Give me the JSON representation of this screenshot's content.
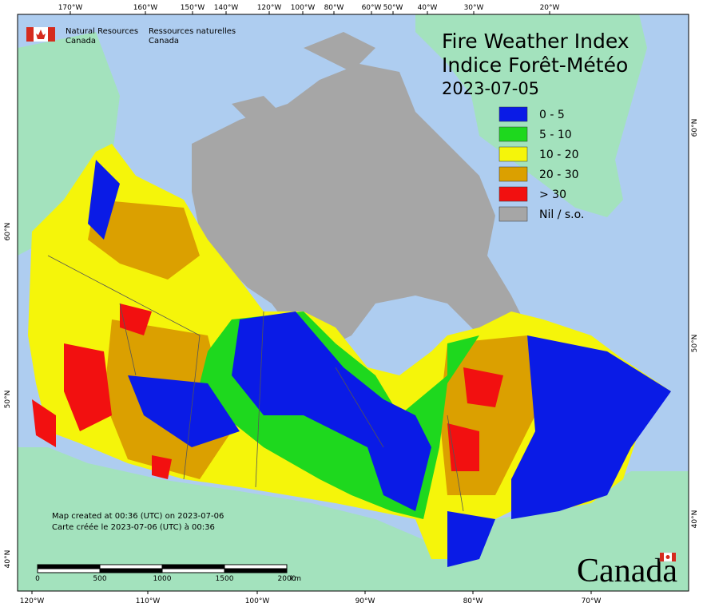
{
  "header": {
    "org_en": [
      "Natural Resources",
      "Canada"
    ],
    "org_fr": [
      "Ressources naturelles",
      "Canada"
    ],
    "title_en": "Fire Weather Index",
    "title_fr": "Indice Forêt-Météo",
    "date": "2023-07-05"
  },
  "legend": [
    {
      "label": "0 - 5",
      "color": "#0a1be6"
    },
    {
      "label": "5 - 10",
      "color": "#1ed81e"
    },
    {
      "label": "10 - 20",
      "color": "#f5f50a"
    },
    {
      "label": "20 - 30",
      "color": "#dba000"
    },
    {
      "label": "> 30",
      "color": "#f21010"
    },
    {
      "label": "Nil / s.o.",
      "color": "#a6a6a6"
    }
  ],
  "graticule": {
    "top": [
      "170°W",
      "160°W",
      "150°W",
      "140°W",
      "120°W",
      "100°W",
      "80°W",
      "60°W",
      "50°W",
      "40°W",
      "30°W",
      "20°W"
    ],
    "bottom": [
      "120°W",
      "110°W",
      "100°W",
      "90°W",
      "80°W",
      "70°W"
    ],
    "left": [
      "60°N",
      "50°N",
      "40°N"
    ],
    "right": [
      "60°N",
      "50°N",
      "40°N"
    ]
  },
  "notes": [
    "Map created at 00:36 (UTC) on 2023-07-06",
    "Carte créée le 2023-07-06 (UTC) à 00:36"
  ],
  "scale_bar": {
    "labels": [
      "0",
      "500",
      "1000",
      "1500",
      "2000"
    ],
    "unit": "km"
  },
  "wordmark": "Canada"
}
